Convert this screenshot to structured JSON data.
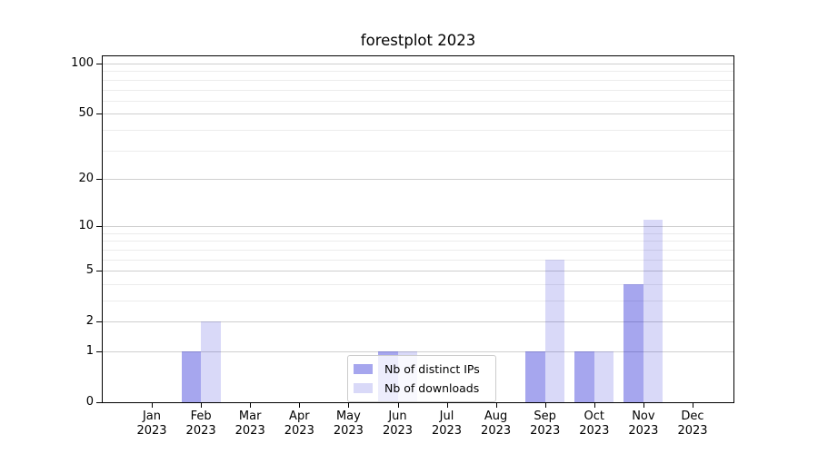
{
  "title": "forestplot 2023",
  "chart_data": {
    "type": "bar",
    "title": "forestplot 2023",
    "categories": [
      "Jan",
      "Feb",
      "Mar",
      "Apr",
      "May",
      "Jun",
      "Jul",
      "Aug",
      "Sep",
      "Oct",
      "Nov",
      "Dec"
    ],
    "category_year": "2023",
    "series": [
      {
        "name": "Nb of distinct IPs",
        "color": "rgba(0,0,205,0.35)",
        "values": [
          0,
          1,
          0,
          0,
          0,
          1,
          0,
          0,
          1,
          1,
          4,
          0
        ]
      },
      {
        "name": "Nb of downloads",
        "color": "rgba(0,0,205,0.15)",
        "values": [
          0,
          2,
          0,
          0,
          0,
          1,
          0,
          0,
          6,
          1,
          11,
          0
        ]
      }
    ],
    "y_scale": "log1p",
    "y_ticks": [
      0,
      1,
      2,
      5,
      10,
      20,
      50,
      100
    ],
    "y_minor_ticks": [
      3,
      4,
      6,
      7,
      8,
      9,
      30,
      40,
      60,
      70,
      80,
      90
    ],
    "ylim": [
      0,
      110
    ],
    "xlabel": "",
    "ylabel": "",
    "grid": true,
    "legend_position": "lower center",
    "colors": {
      "grid_major": "#cfcfcf",
      "grid_minor": "#ececec",
      "spine": "#000000",
      "legend_border": "#cccccc",
      "legend_bg": "rgba(255,255,255,0.8)",
      "text": "#000000"
    }
  }
}
